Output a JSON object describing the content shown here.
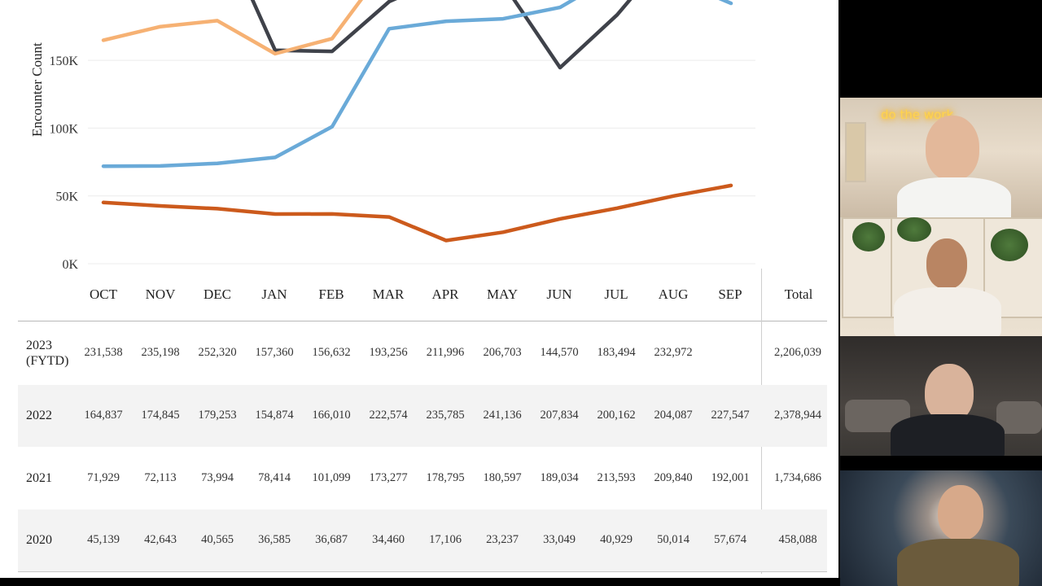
{
  "chart_data": {
    "type": "line",
    "ylabel": "Encounter Count",
    "y_ticks": [
      "0K",
      "50K",
      "100K",
      "150K"
    ],
    "categories": [
      "OCT",
      "NOV",
      "DEC",
      "JAN",
      "FEB",
      "MAR",
      "APR",
      "MAY",
      "JUN",
      "JUL",
      "AUG",
      "SEP"
    ],
    "series": [
      {
        "name": "2023 (FYTD)",
        "color": "#3f424a",
        "values": [
          231538,
          235198,
          252320,
          157360,
          156632,
          193256,
          211996,
          206703,
          144570,
          183494,
          232972,
          null
        ]
      },
      {
        "name": "2022",
        "color": "#f6b173",
        "values": [
          164837,
          174845,
          179253,
          154874,
          166010,
          222574,
          235785,
          241136,
          207834,
          200162,
          204087,
          227547
        ]
      },
      {
        "name": "2021",
        "color": "#6aaad8",
        "values": [
          71929,
          72113,
          73994,
          78414,
          101099,
          173277,
          178795,
          180597,
          189034,
          213593,
          209840,
          192001
        ]
      },
      {
        "name": "2020",
        "color": "#cc5a1c",
        "values": [
          45139,
          42643,
          40565,
          36585,
          36687,
          34460,
          17106,
          23237,
          33049,
          40929,
          50014,
          57674
        ]
      }
    ]
  },
  "table": {
    "months": [
      "OCT",
      "NOV",
      "DEC",
      "JAN",
      "FEB",
      "MAR",
      "APR",
      "MAY",
      "JUN",
      "JUL",
      "AUG",
      "SEP"
    ],
    "total_label": "Total",
    "rows": [
      {
        "year_line1": "2023",
        "year_line2": "(FYTD)",
        "cells": [
          "231,538",
          "235,198",
          "252,320",
          "157,360",
          "156,632",
          "193,256",
          "211,996",
          "206,703",
          "144,570",
          "183,494",
          "232,972",
          ""
        ],
        "total": "2,206,039"
      },
      {
        "year_line1": "2022",
        "year_line2": "",
        "cells": [
          "164,837",
          "174,845",
          "179,253",
          "154,874",
          "166,010",
          "222,574",
          "235,785",
          "241,136",
          "207,834",
          "200,162",
          "204,087",
          "227,547"
        ],
        "total": "2,378,944"
      },
      {
        "year_line1": "2021",
        "year_line2": "",
        "cells": [
          "71,929",
          "72,113",
          "73,994",
          "78,414",
          "101,099",
          "173,277",
          "178,795",
          "180,597",
          "189,034",
          "213,593",
          "209,840",
          "192,001"
        ],
        "total": "1,734,686"
      },
      {
        "year_line1": "2020",
        "year_line2": "",
        "cells": [
          "45,139",
          "42,643",
          "40,565",
          "36,585",
          "36,687",
          "34,460",
          "17,106",
          "23,237",
          "33,049",
          "40,929",
          "50,014",
          "57,674"
        ],
        "total": "458,088"
      }
    ]
  },
  "video_tiles": {
    "tile1_sign": "do the work"
  }
}
